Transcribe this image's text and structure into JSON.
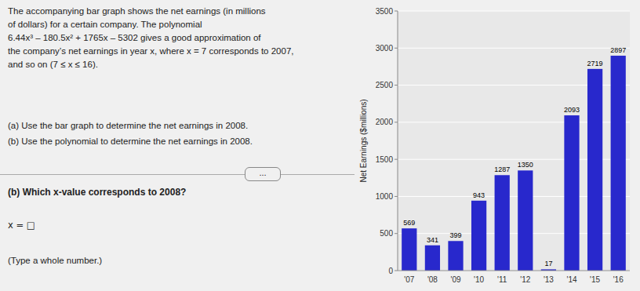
{
  "chart_data": {
    "type": "bar",
    "categories": [
      "'07",
      "'08",
      "'09",
      "'10",
      "'11",
      "'12",
      "'13",
      "'14",
      "'15",
      "'16"
    ],
    "values": [
      569,
      341,
      399,
      943,
      1287,
      1350,
      17,
      2093,
      2719,
      2897
    ],
    "color": "#2828cc",
    "ylabel": "Net Earnings ($millions)",
    "ylim": [
      0,
      3500
    ],
    "yticks": [
      0,
      500,
      1000,
      1500,
      2000,
      2500,
      3000,
      3500
    ],
    "grid": true,
    "data_labels": true,
    "annotations": [
      "The accompanying bar graph shows the net earnings (in millions\nof dollars) for a certain company. The polynomial\n6.44x³ – 180.5x² + 1765x – 5302 gives a good approximation of\nthe company’s net earnings in year x, where x = 7 corresponds to 2007,\nand so on (7 ≤ x ≤ 16).",
      "(a) Use the bar graph to determine the net earnings in 2008.\n(b) Use the polynomial to determine the net earnings in 2008.",
      "...",
      "(b) Which x-value corresponds to 2008?",
      "x = □",
      "(Type a whole number.)"
    ]
  }
}
